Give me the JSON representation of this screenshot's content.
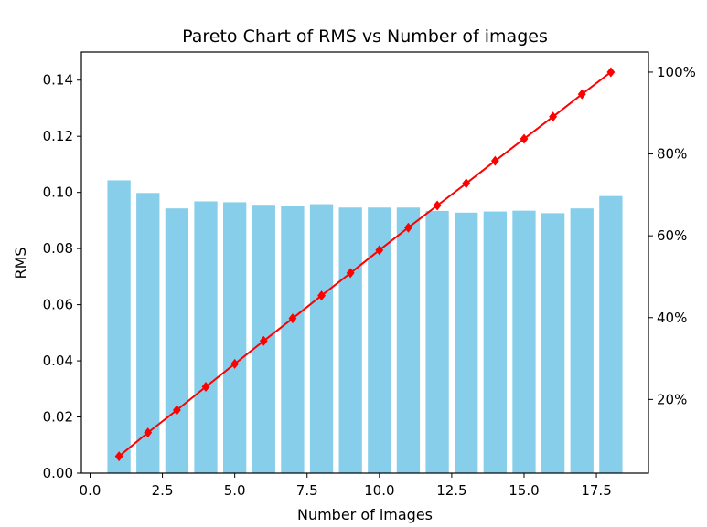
{
  "chart_data": {
    "type": "bar",
    "title": "Pareto Chart of RMS vs Number of images",
    "xlabel": "Number of images",
    "ylabel": "RMS",
    "x": [
      1,
      2,
      3,
      4,
      5,
      6,
      7,
      8,
      9,
      10,
      11,
      12,
      13,
      14,
      15,
      16,
      17,
      18
    ],
    "bar_values": [
      0.1043,
      0.0998,
      0.0943,
      0.0968,
      0.0965,
      0.0956,
      0.0952,
      0.0958,
      0.0946,
      0.0946,
      0.0946,
      0.0934,
      0.0928,
      0.0932,
      0.0935,
      0.0926,
      0.0943,
      0.0987
    ],
    "cumulative_percent": [
      6.1,
      11.9,
      17.4,
      23.1,
      28.7,
      34.3,
      39.8,
      45.4,
      50.9,
      56.5,
      62.0,
      67.4,
      72.8,
      78.3,
      83.7,
      89.1,
      94.6,
      100.0
    ],
    "bar_color": "#87ceeb",
    "line_color": "#ff0000",
    "xlim": [
      -0.3,
      19.3
    ],
    "ylim": [
      0,
      0.15
    ],
    "y2lim": [
      2.0,
      104.9
    ],
    "xticks": [
      0.0,
      2.5,
      5.0,
      7.5,
      10.0,
      12.5,
      15.0,
      17.5
    ],
    "xtick_labels": [
      "0.0",
      "2.5",
      "5.0",
      "7.5",
      "10.0",
      "12.5",
      "15.0",
      "17.5"
    ],
    "yticks": [
      0.0,
      0.02,
      0.04,
      0.06,
      0.08,
      0.1,
      0.12,
      0.14
    ],
    "ytick_labels": [
      "0.00",
      "0.02",
      "0.04",
      "0.06",
      "0.08",
      "0.10",
      "0.12",
      "0.14"
    ],
    "y2ticks": [
      20,
      40,
      60,
      80,
      100
    ],
    "y2tick_labels": [
      "20%",
      "40%",
      "60%",
      "80%",
      "100%"
    ],
    "grid": false,
    "legend": "none"
  }
}
